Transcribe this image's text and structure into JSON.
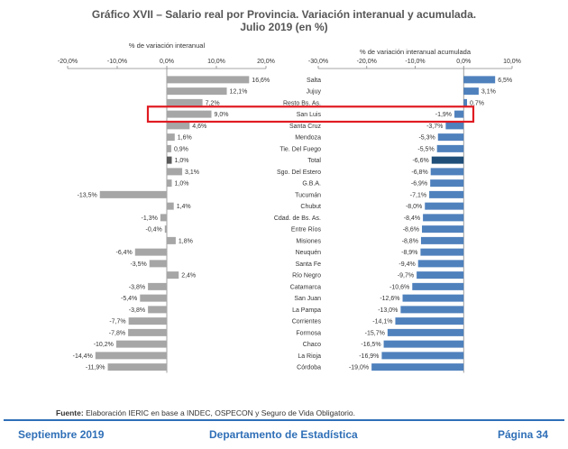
{
  "page": {
    "title_line1": "Gráfico XVII – Salario real por Provincia. Variación interanual y acumulada.",
    "title_line2": "Julio 2019 (en %)",
    "source_prefix": "Fuente:",
    "source_text": "Elaboración IERIC en base a INDEC, OSPECON y Seguro de Vida Obligatorio.",
    "footer_left": "Septiembre 2019",
    "footer_center": "Departamento de Estadística",
    "footer_right": "Página 34"
  },
  "colors": {
    "left_bar": "#a6a6a6",
    "left_total": "#595959",
    "right_bar": "#4f81bd",
    "right_total": "#1f4e79",
    "highlight": "#e01b22",
    "footer_blue": "#2f6fb7"
  },
  "chart_data": [
    {
      "type": "bar",
      "orientation": "horizontal",
      "title": "% de variación interanual",
      "xlim": [
        -20,
        20
      ],
      "ticks": [
        "-20,0%",
        "-10,0%",
        "0,0%",
        "10,0%",
        "20,0%"
      ],
      "tick_values": [
        -20,
        -10,
        0,
        10,
        20
      ],
      "categories": [
        "Salta",
        "Jujuy",
        "Resto Bs. As.",
        "San Luis",
        "Santa Cruz",
        "Mendoza",
        "Tie. Del Fuego",
        "Total",
        "Sgo. Del Estero",
        "G.B.A.",
        "Tucumán",
        "Chubut",
        "Cdad. de Bs. As.",
        "Entre Ríos",
        "Misiones",
        "Neuquén",
        "Santa Fe",
        "Río Negro",
        "Catamarca",
        "San Juan",
        "La Pampa",
        "Corrientes",
        "Formosa",
        "Chaco",
        "La Rioja",
        "Córdoba"
      ],
      "values": [
        16.6,
        12.1,
        7.2,
        9.0,
        4.6,
        1.6,
        0.9,
        1.0,
        3.1,
        1.0,
        -13.5,
        1.4,
        -1.3,
        -0.4,
        1.8,
        -6.4,
        -3.5,
        2.4,
        -3.8,
        -5.4,
        -3.8,
        -7.7,
        -7.8,
        -10.2,
        -14.4,
        -11.9
      ],
      "labels": [
        "16,6%",
        "12,1%",
        "7,2%",
        "9,0%",
        "4,6%",
        "1,6%",
        "0,9%",
        "1,0%",
        "3,1%",
        "1,0%",
        "-13,5%",
        "1,4%",
        "-1,3%",
        "-0,4%",
        "1,8%",
        "-6,4%",
        "-3,5%",
        "2,4%",
        "-3,8%",
        "-5,4%",
        "-3,8%",
        "-7,7%",
        "-7,8%",
        "-10,2%",
        "-14,4%",
        "-11,9%"
      ]
    },
    {
      "type": "bar",
      "orientation": "horizontal",
      "title": "% de variación interanual acumulada",
      "xlim": [
        -30,
        10
      ],
      "ticks": [
        "-30,0%",
        "-20,0%",
        "-10,0%",
        "0,0%",
        "10,0%"
      ],
      "tick_values": [
        -30,
        -20,
        -10,
        0,
        10
      ],
      "categories": [
        "Salta",
        "Jujuy",
        "Resto Bs. As.",
        "San Luis",
        "Santa Cruz",
        "Mendoza",
        "Tie. Del Fuego",
        "Total",
        "Sgo. Del Estero",
        "G.B.A.",
        "Tucumán",
        "Chubut",
        "Cdad. de Bs. As.",
        "Entre Ríos",
        "Misiones",
        "Neuquén",
        "Santa Fe",
        "Río Negro",
        "Catamarca",
        "San Juan",
        "La Pampa",
        "Corrientes",
        "Formosa",
        "Chaco",
        "La Rioja",
        "Córdoba"
      ],
      "values": [
        6.5,
        3.1,
        0.7,
        -1.9,
        -3.7,
        -5.3,
        -5.5,
        -6.6,
        -6.8,
        -6.9,
        -7.1,
        -8.0,
        -8.4,
        -8.6,
        -8.8,
        -8.9,
        -9.4,
        -9.7,
        -10.6,
        -12.6,
        -13.0,
        -14.1,
        -15.7,
        -16.5,
        -16.9,
        -19.0
      ],
      "labels": [
        "6,5%",
        "3,1%",
        "0,7%",
        "-1,9%",
        "-3,7%",
        "-5,3%",
        "-5,5%",
        "-6,6%",
        "-6,8%",
        "-6,9%",
        "-7,1%",
        "-8,0%",
        "-8,4%",
        "-8,6%",
        "-8,8%",
        "-8,9%",
        "-9,4%",
        "-9,7%",
        "-10,6%",
        "-12,6%",
        "-13,0%",
        "-14,1%",
        "-15,7%",
        "-16,5%",
        "-16,9%",
        "-19,0%"
      ],
      "highlighted_category": "San Luis",
      "total_category": "Total"
    }
  ]
}
